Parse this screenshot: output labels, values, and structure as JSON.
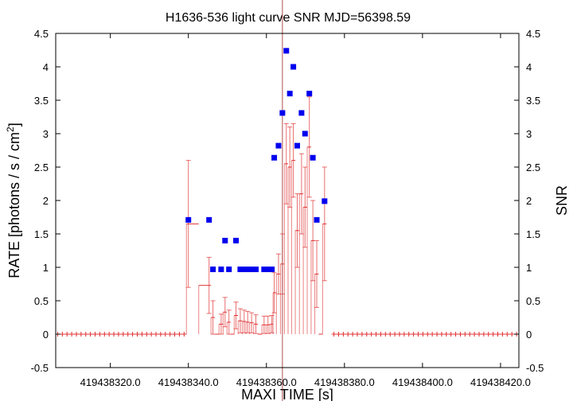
{
  "chart_data": {
    "type": "scatter",
    "title": "H1636-536 light curve  SNR MJD=56398.59",
    "xlabel": "MAXI TIME [s]",
    "ylabel": "RATE [photons / s / cm",
    "ylabel_sup": "2",
    "ylabel_end": "]",
    "y2label": "SNR",
    "x_offset": 419438000,
    "xlim": [
      306,
      424.7
    ],
    "ylim": [
      -0.5,
      4.5
    ],
    "xticks": [
      320,
      340,
      360,
      380,
      400,
      420
    ],
    "xtick_labels": [
      "419438320.0",
      "419438340.0",
      "419438360.0",
      "419438380.0",
      "419438400.0",
      "419438420.0"
    ],
    "yticks": [
      -0.5,
      0,
      0.5,
      1,
      1.5,
      2,
      2.5,
      3,
      3.5,
      4,
      4.5
    ],
    "ytick_labels": [
      "-0.5",
      "0",
      "0.5",
      "1",
      "1.5",
      "2",
      "2.5",
      "3",
      "3.5",
      "4",
      "4.5"
    ],
    "marker_time": 364.1,
    "colors": {
      "rate": "#e03030",
      "snr": "#0000ee",
      "marker": "#b05050"
    },
    "rate_zero_bins": {
      "start": 306.5,
      "end": 424.5,
      "step": 1.2
    },
    "rate": [
      {
        "t": 340.0,
        "v": 1.65,
        "e": 0.95
      },
      {
        "t": 345.3,
        "v": 0.73,
        "e": 0.42
      },
      {
        "t": 346.3,
        "v": 0.25,
        "e": 0.25
      },
      {
        "t": 347.3,
        "v": 0.0,
        "e": 0.0
      },
      {
        "t": 348.4,
        "v": 0.15,
        "e": 0.15
      },
      {
        "t": 349.4,
        "v": 0.33,
        "e": 0.22
      },
      {
        "t": 350.4,
        "v": 0.18,
        "e": 0.18
      },
      {
        "t": 351.3,
        "v": 0.0,
        "e": 0.0
      },
      {
        "t": 352.2,
        "v": 0.28,
        "e": 0.2
      },
      {
        "t": 353.3,
        "v": 0.2,
        "e": 0.18
      },
      {
        "t": 354.3,
        "v": 0.19,
        "e": 0.17
      },
      {
        "t": 355.2,
        "v": 0.18,
        "e": 0.16
      },
      {
        "t": 356.2,
        "v": 0.17,
        "e": 0.15
      },
      {
        "t": 357.3,
        "v": 0.15,
        "e": 0.14
      },
      {
        "t": 358.3,
        "v": 0.0,
        "e": 0.0
      },
      {
        "t": 359.4,
        "v": 0.14,
        "e": 0.13
      },
      {
        "t": 360.4,
        "v": 0.14,
        "e": 0.13
      },
      {
        "t": 361.4,
        "v": 0.15,
        "e": 0.13
      },
      {
        "t": 362.0,
        "v": 0.62,
        "e": 0.3
      },
      {
        "t": 363.1,
        "v": 0.9,
        "e": 0.3
      },
      {
        "t": 364.1,
        "v": 1.05,
        "e": 0.45
      },
      {
        "t": 365.1,
        "v": 2.55,
        "e": 0.6
      },
      {
        "t": 366.0,
        "v": 2.5,
        "e": 0.6
      },
      {
        "t": 366.9,
        "v": 2.6,
        "e": 0.55
      },
      {
        "t": 367.9,
        "v": 1.55,
        "e": 0.55
      },
      {
        "t": 369.0,
        "v": 2.1,
        "e": 0.6
      },
      {
        "t": 369.9,
        "v": 1.9,
        "e": 0.6
      },
      {
        "t": 371.0,
        "v": 2.8,
        "e": 0.75
      },
      {
        "t": 371.9,
        "v": 1.4,
        "e": 0.6
      },
      {
        "t": 372.9,
        "v": 0.9,
        "e": 0.5
      },
      {
        "t": 373.9,
        "v": 0.0,
        "e": 0.0
      },
      {
        "t": 374.9,
        "v": 1.65,
        "e": 0.85
      }
    ],
    "snr": [
      {
        "t": 340.0,
        "v": 1.71
      },
      {
        "t": 345.3,
        "v": 1.71
      },
      {
        "t": 346.3,
        "v": 0.97
      },
      {
        "t": 348.4,
        "v": 0.97
      },
      {
        "t": 349.4,
        "v": 1.4
      },
      {
        "t": 350.4,
        "v": 0.97
      },
      {
        "t": 352.2,
        "v": 1.4
      },
      {
        "t": 353.3,
        "v": 0.97
      },
      {
        "t": 354.3,
        "v": 0.97
      },
      {
        "t": 355.2,
        "v": 0.97
      },
      {
        "t": 356.2,
        "v": 0.97
      },
      {
        "t": 357.3,
        "v": 0.97
      },
      {
        "t": 359.4,
        "v": 0.97
      },
      {
        "t": 360.4,
        "v": 0.97
      },
      {
        "t": 361.4,
        "v": 0.97
      },
      {
        "t": 362.0,
        "v": 2.64
      },
      {
        "t": 363.1,
        "v": 2.82
      },
      {
        "t": 364.1,
        "v": 3.31
      },
      {
        "t": 365.1,
        "v": 4.24
      },
      {
        "t": 366.0,
        "v": 3.6
      },
      {
        "t": 366.9,
        "v": 4.0
      },
      {
        "t": 367.9,
        "v": 2.82
      },
      {
        "t": 369.0,
        "v": 3.31
      },
      {
        "t": 369.9,
        "v": 3.0
      },
      {
        "t": 371.0,
        "v": 3.6
      },
      {
        "t": 371.9,
        "v": 2.64
      },
      {
        "t": 372.9,
        "v": 1.71
      },
      {
        "t": 374.9,
        "v": 1.99
      }
    ]
  }
}
